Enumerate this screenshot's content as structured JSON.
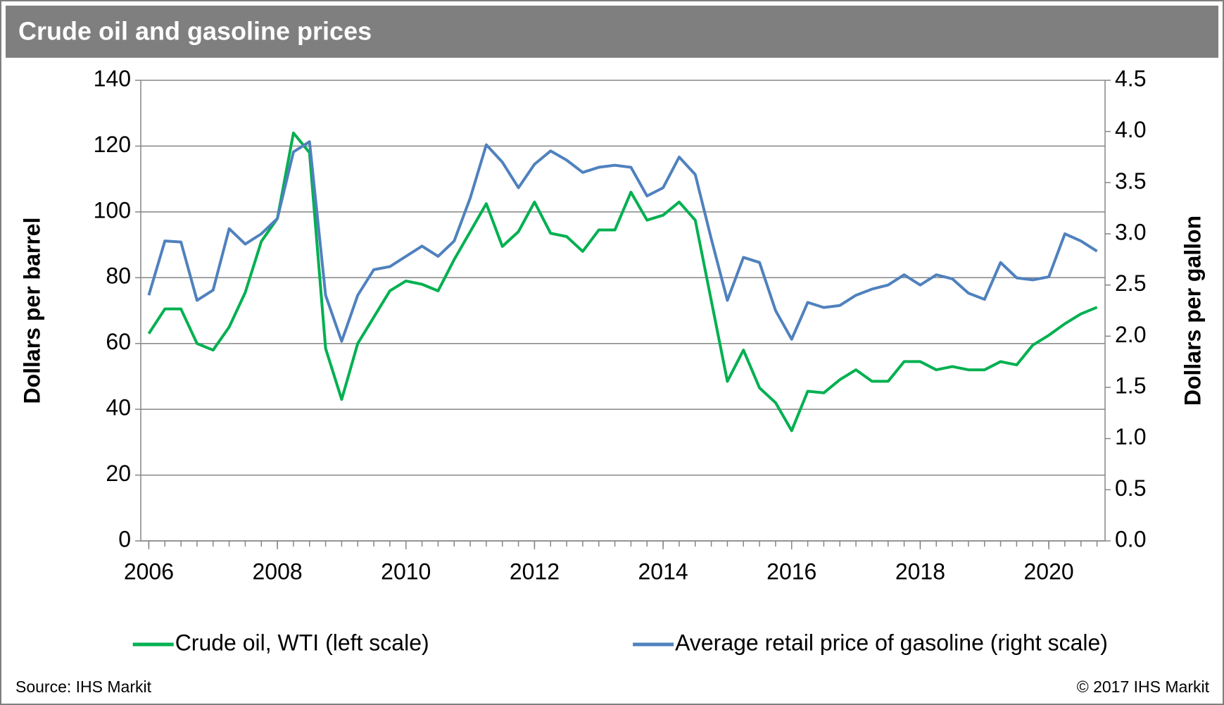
{
  "chart_data": {
    "type": "line",
    "title": "Crude oil and gasoline prices",
    "y_label": "Dollars per barrel",
    "y2_label": "Dollars per gallon",
    "source": "Source: IHS Markit",
    "copyright": "© 2017 IHS Markit",
    "x": [
      2006,
      2006.25,
      2006.5,
      2006.75,
      2007,
      2007.25,
      2007.5,
      2007.75,
      2008,
      2008.25,
      2008.5,
      2008.75,
      2009,
      2009.25,
      2009.5,
      2009.75,
      2010,
      2010.25,
      2010.5,
      2010.75,
      2011,
      2011.25,
      2011.5,
      2011.75,
      2012,
      2012.25,
      2012.5,
      2012.75,
      2013,
      2013.25,
      2013.5,
      2013.75,
      2014,
      2014.25,
      2014.5,
      2014.75,
      2015,
      2015.25,
      2015.5,
      2015.75,
      2016,
      2016.25,
      2016.5,
      2016.75,
      2017,
      2017.25,
      2017.5,
      2017.75,
      2018,
      2018.25,
      2018.5,
      2018.75,
      2019,
      2019.25,
      2019.5,
      2019.75,
      2020,
      2020.25,
      2020.5,
      2020.75
    ],
    "xlim": [
      2005.875,
      2020.875
    ],
    "xticks": [
      2006,
      2008,
      2010,
      2012,
      2014,
      2016,
      2018,
      2020
    ],
    "ylim": [
      0,
      140
    ],
    "yticks": [
      0,
      20,
      40,
      60,
      80,
      100,
      120,
      140
    ],
    "y2lim": [
      0,
      4.5
    ],
    "y2ticks": [
      {
        "value": 0,
        "label": "0.0"
      },
      0.5,
      {
        "value": 1,
        "label": "1.0"
      },
      1.5,
      {
        "value": 2,
        "label": "2.0"
      },
      2.5,
      {
        "value": 3,
        "label": "3.0"
      },
      3.5,
      {
        "value": 4,
        "label": "4.0"
      },
      4.5
    ],
    "grid": true,
    "legend": "bottom",
    "series": [
      {
        "name": "Crude oil, WTI (left scale)",
        "color": "#00b050",
        "axis": "y",
        "values": [
          63,
          70.5,
          70.5,
          60,
          58,
          65,
          75.5,
          91,
          98,
          124,
          118,
          58.5,
          43,
          60,
          68,
          76,
          79,
          78,
          76,
          85.5,
          94,
          102.5,
          89.5,
          94,
          103,
          93.5,
          92.5,
          88,
          94.5,
          94.5,
          106,
          97.5,
          99,
          103,
          97.5,
          73,
          48.5,
          58,
          46.5,
          42,
          33.5,
          45.5,
          45,
          49,
          52,
          48.5,
          48.5,
          54.5,
          54.5,
          52,
          53,
          52,
          52,
          54.5,
          53.5,
          59.5,
          62.5,
          66,
          69,
          71
        ]
      },
      {
        "name": "Average retail price of gasoline (right scale)",
        "color": "#4f81bd",
        "axis": "y2",
        "values": [
          2.4,
          2.93,
          2.92,
          2.35,
          2.45,
          3.05,
          2.9,
          3.0,
          3.15,
          3.8,
          3.9,
          2.4,
          1.95,
          2.4,
          2.65,
          2.68,
          2.78,
          2.88,
          2.78,
          2.93,
          3.35,
          3.87,
          3.7,
          3.45,
          3.68,
          3.81,
          3.72,
          3.6,
          3.65,
          3.67,
          3.65,
          3.37,
          3.45,
          3.75,
          3.58,
          2.95,
          2.35,
          2.77,
          2.72,
          2.25,
          1.97,
          2.33,
          2.28,
          2.3,
          2.4,
          2.46,
          2.5,
          2.6,
          2.5,
          2.6,
          2.56,
          2.42,
          2.36,
          2.72,
          2.57,
          2.55,
          2.58,
          3.0,
          2.93,
          2.83
        ]
      }
    ]
  }
}
